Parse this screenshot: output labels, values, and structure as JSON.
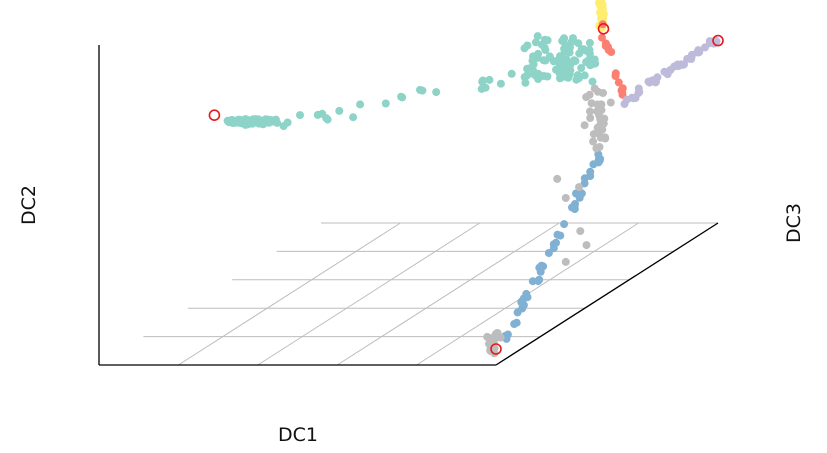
{
  "chart_data": {
    "type": "scatter",
    "projection": "3d",
    "xlabel": "DC1",
    "ylabel": "DC2",
    "zlabel": "DC3",
    "grid": true,
    "legend": "none",
    "colors": {
      "clusters": [
        "#8dd3c7",
        "#ffed6f",
        "#fb8072",
        "#bebada",
        "#80b1d3",
        "#bdbdbd"
      ],
      "root_marker_stroke": "#e41a1c",
      "grid": "#bdbdbd",
      "axis": "#000000"
    },
    "series": [
      {
        "color": "#8dd3c7",
        "arm": "teal",
        "ranges": {
          "x": [
            0.0,
            0.9
          ],
          "y": [
            0.45,
            0.85
          ],
          "z": [
            0.5,
            0.55
          ]
        }
      },
      {
        "color": "#ffed6f",
        "arm": "yellow",
        "ranges": {
          "x": [
            0.97,
            1.0
          ],
          "y": [
            0.82,
            1.0
          ],
          "z": [
            0.5,
            0.55
          ]
        }
      },
      {
        "color": "#fb8072",
        "arm": "salmon",
        "ranges": {
          "x": [
            0.97,
            1.0
          ],
          "y": [
            0.55,
            0.85
          ],
          "z": [
            0.5,
            0.55
          ]
        }
      },
      {
        "color": "#bebada",
        "arm": "lavender",
        "ranges": {
          "x": [
            1.0,
            1.0
          ],
          "y": [
            0.55,
            0.6
          ],
          "z": [
            0.55,
            1.0
          ]
        }
      },
      {
        "color": "#80b1d3",
        "arm": "blue",
        "ranges": {
          "x": [
            1.0,
            1.0
          ],
          "y": [
            0.0,
            0.45
          ],
          "z": [
            0.05,
            0.5
          ]
        }
      },
      {
        "color": "#bdbdbd",
        "arm": "grey",
        "ranges": {
          "x": [
            0.95,
            1.0
          ],
          "y": [
            0.0,
            0.6
          ],
          "z": [
            0.0,
            0.55
          ]
        }
      }
    ],
    "root_points": [
      {
        "x": 0.0,
        "y": 0.55,
        "z": 0.52
      },
      {
        "x": 0.98,
        "y": 1.0,
        "z": 0.52
      },
      {
        "x": 0.98,
        "y": 0.82,
        "z": 0.52
      },
      {
        "x": 1.0,
        "y": 0.57,
        "z": 1.0
      },
      {
        "x": 1.0,
        "y": 0.05,
        "z": 0.0
      }
    ]
  }
}
